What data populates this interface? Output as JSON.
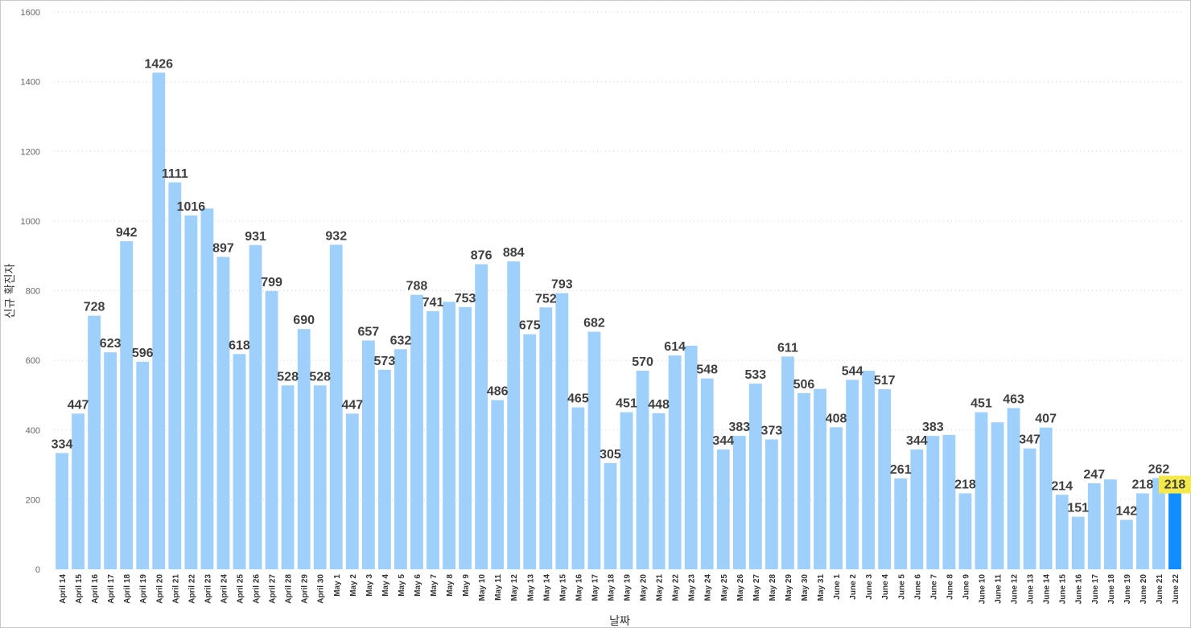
{
  "chart_data": {
    "type": "bar",
    "xlabel": "날짜",
    "ylabel": "신규 확진자",
    "ylim": [
      0,
      1600
    ],
    "yticks": [
      0,
      200,
      400,
      600,
      800,
      1000,
      1200,
      1400,
      1600
    ],
    "grid": true,
    "colors": {
      "bar": "#9fcffb",
      "highlight": "#118dff",
      "highlight_label_bg": "#f5e94a"
    },
    "highlighted_category": "June 22",
    "categories": [
      "April 14",
      "April 15",
      "April 16",
      "April 17",
      "April 18",
      "April 19",
      "April 20",
      "April 21",
      "April 22",
      "April 23",
      "April 24",
      "April 25",
      "April 26",
      "April 27",
      "April 28",
      "April 29",
      "April 30",
      "May 1",
      "May 2",
      "May 3",
      "May 4",
      "May 5",
      "May 6",
      "May 7",
      "May 8",
      "May 9",
      "May 10",
      "May 11",
      "May 12",
      "May 13",
      "May 14",
      "May 15",
      "May 16",
      "May 17",
      "May 18",
      "May 19",
      "May 20",
      "May 21",
      "May 22",
      "May 23",
      "May 24",
      "May 25",
      "May 26",
      "May 27",
      "May 28",
      "May 29",
      "May 30",
      "May 31",
      "June 1",
      "June 2",
      "June 3",
      "June 4",
      "June 5",
      "June 6",
      "June 7",
      "June 8",
      "June 9",
      "June 10",
      "June 11",
      "June 12",
      "June 13",
      "June 14",
      "June 15",
      "June 16",
      "June 17",
      "June 18",
      "June 19",
      "June 20",
      "June 21",
      "June 22"
    ],
    "values": [
      334,
      447,
      728,
      623,
      942,
      596,
      1426,
      1111,
      1016,
      1036,
      897,
      618,
      931,
      799,
      528,
      690,
      528,
      932,
      447,
      657,
      573,
      632,
      788,
      741,
      768,
      753,
      876,
      486,
      884,
      675,
      752,
      793,
      465,
      682,
      305,
      451,
      570,
      448,
      614,
      642,
      548,
      344,
      383,
      533,
      373,
      611,
      506,
      518,
      408,
      544,
      570,
      517,
      261,
      344,
      383,
      386,
      218,
      451,
      422,
      463,
      347,
      407,
      214,
      151,
      247,
      258,
      142,
      218,
      262,
      218
    ],
    "data_labels": [
      "334",
      "447",
      "728",
      "623",
      "942",
      "596",
      "1426",
      "1111",
      "1016",
      null,
      "897",
      "618",
      "931",
      "799",
      "528",
      "690",
      "528",
      "932",
      "447",
      "657",
      "573",
      "632",
      "788",
      "741",
      null,
      "753",
      "876",
      "486",
      "884",
      "675",
      "752",
      "793",
      "465",
      "682",
      "305",
      "451",
      "570",
      "448",
      "614",
      null,
      "548",
      "344",
      "383",
      "533",
      "373",
      "611",
      "506",
      null,
      "408",
      "544",
      null,
      "517",
      "261",
      "344",
      "383",
      null,
      "218",
      "451",
      null,
      "463",
      "347",
      "407",
      "214",
      "151",
      "247",
      null,
      "142",
      "218",
      "262",
      "218"
    ]
  }
}
